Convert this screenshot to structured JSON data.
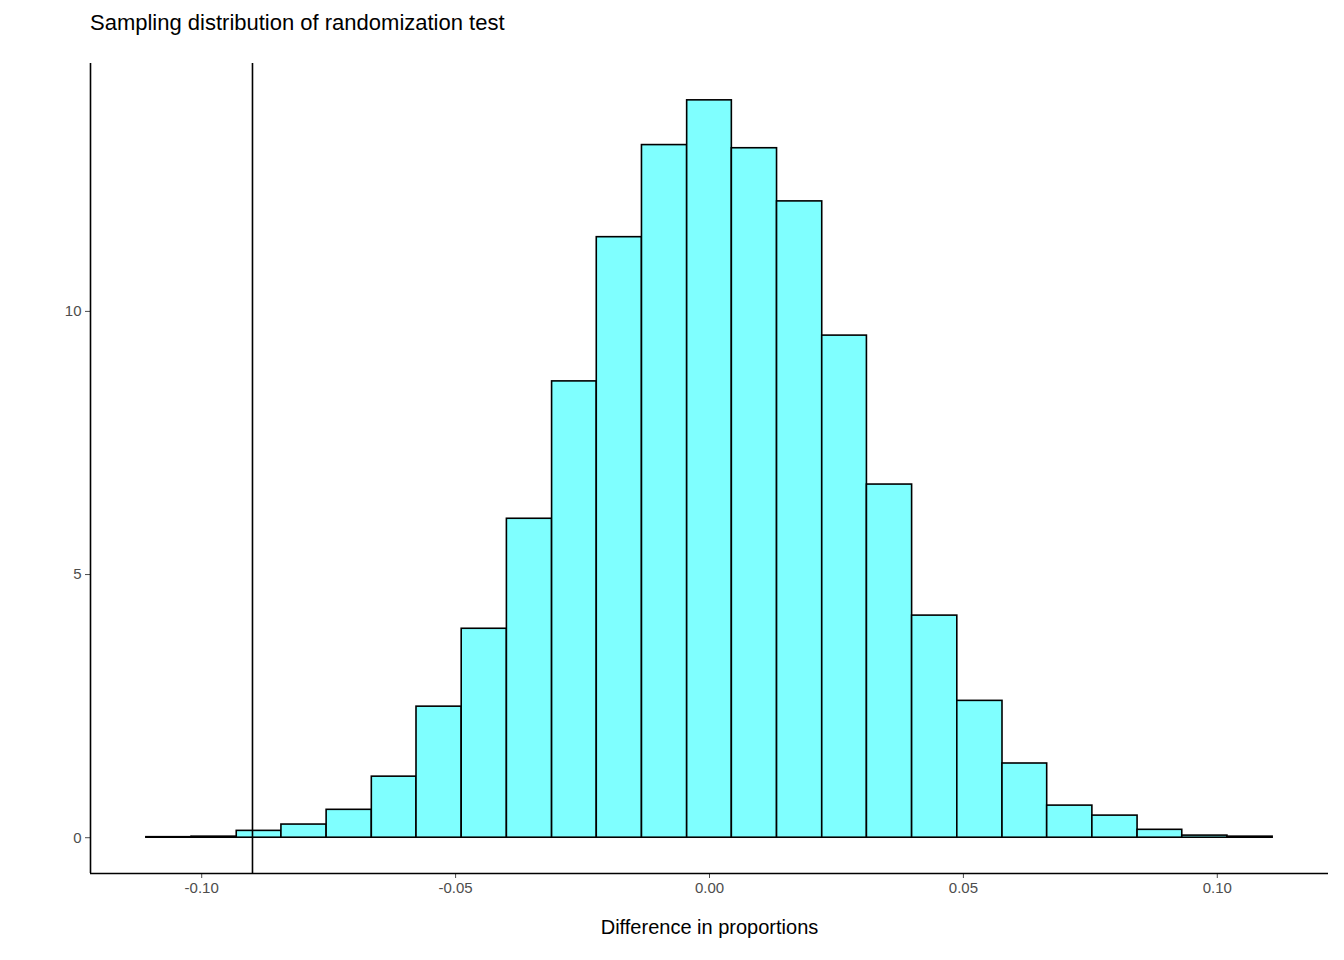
{
  "chart_data": {
    "type": "histogram",
    "title": "Sampling distribution of randomization test",
    "x_label": "Difference in proportions",
    "bins": [
      -0.1109,
      -0.102,
      -0.0931,
      -0.0843,
      -0.0754,
      -0.0665,
      -0.0577,
      -0.0488,
      -0.0399,
      -0.031,
      -0.0222,
      -0.0133,
      -0.0044,
      0.0044,
      0.0133,
      0.0222,
      0.031,
      0.0399,
      0.0488,
      0.0577,
      0.0665,
      0.0754,
      0.0843,
      0.0931,
      0.102,
      0.1109
    ],
    "values": [
      0.01,
      0.02,
      0.13,
      0.25,
      0.53,
      1.16,
      2.49,
      3.97,
      6.06,
      8.67,
      11.41,
      13.16,
      14.01,
      13.1,
      12.09,
      9.54,
      6.71,
      4.22,
      2.6,
      1.41,
      0.61,
      0.42,
      0.15,
      0.04,
      0.02
    ],
    "color": "#7fffff",
    "reference_line": -0.09,
    "xlim": [
      -0.1219,
      0.1219
    ],
    "xticks": [
      {
        "value": -0.1,
        "label": "-0.10"
      },
      -0.05,
      {
        "value": 0,
        "label": "0.00"
      },
      0.05,
      {
        "value": 0.1,
        "label": "0.10"
      }
    ],
    "ylim": [
      -0.68,
      14.71
    ],
    "yticks": [
      0,
      5,
      10
    ],
    "grid": false
  }
}
